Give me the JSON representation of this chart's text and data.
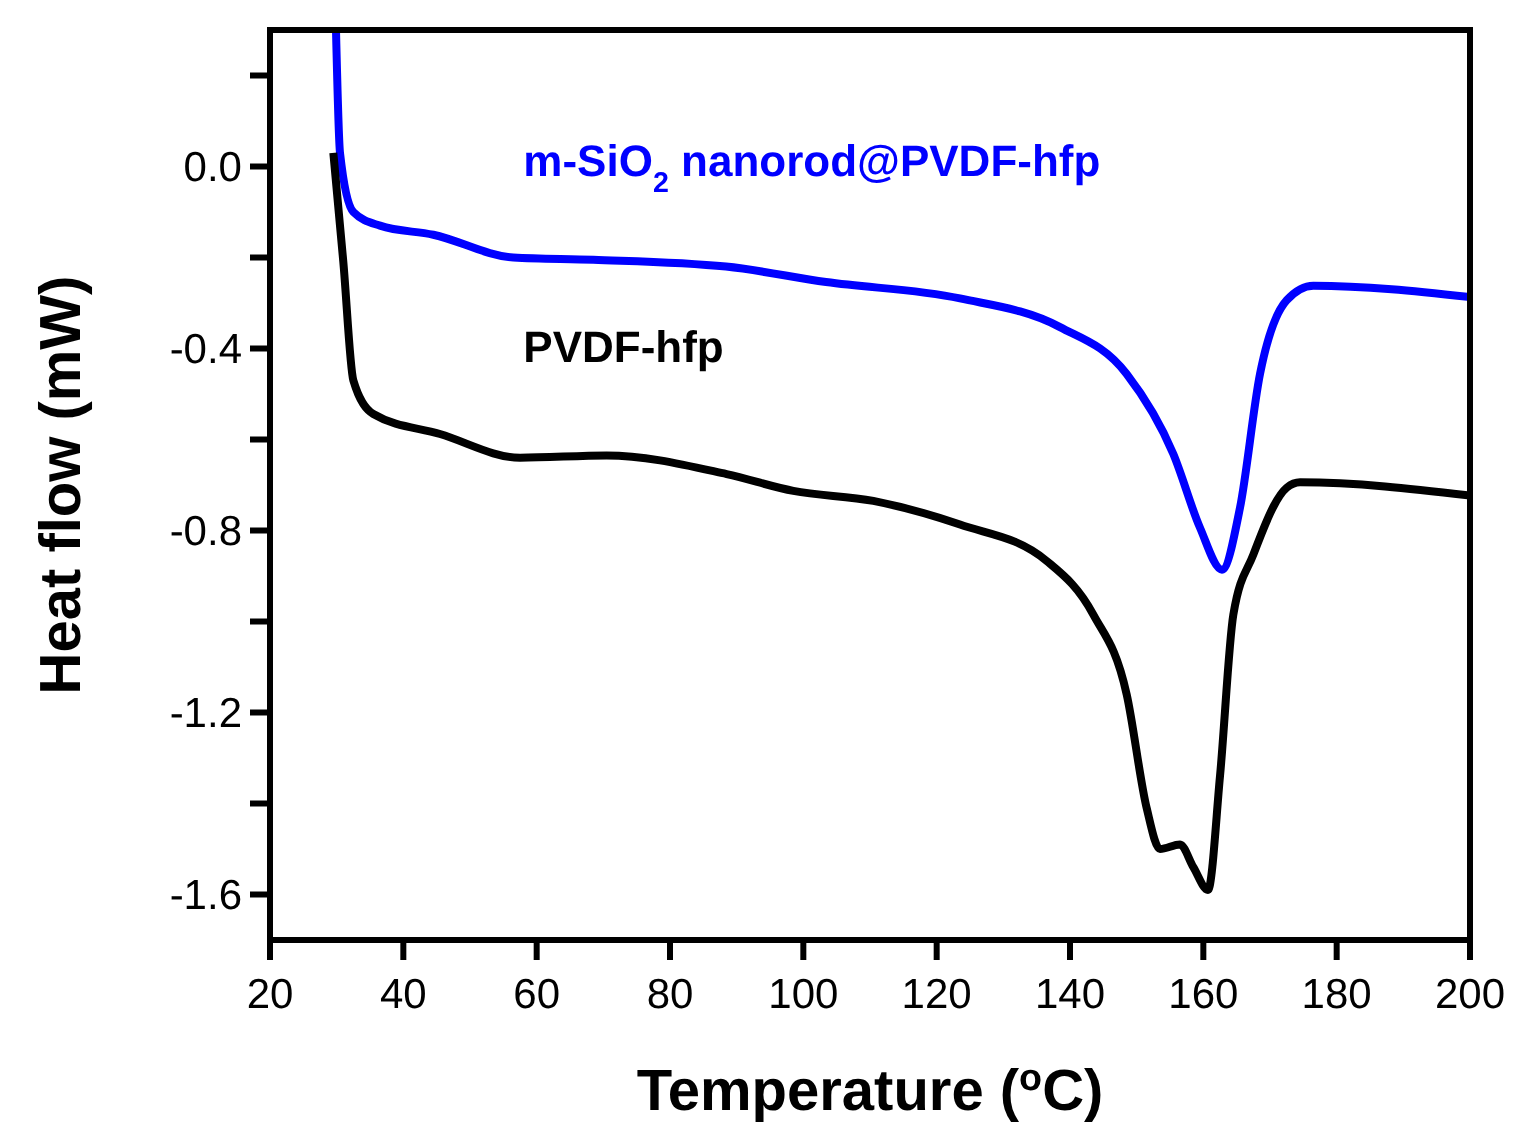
{
  "chart_data": {
    "type": "line",
    "xlabel": "Temperature ($^{o}$C)",
    "ylabel": "Heat flow (mW)",
    "xlim": [
      20,
      200
    ],
    "xticks": [
      20,
      40,
      60,
      80,
      100,
      120,
      140,
      160,
      180,
      200
    ],
    "ylim": [
      -1.7,
      0.3
    ],
    "yticks": [
      {
        "value": 0.2,
        "label": null
      },
      {
        "value": 0,
        "label": "0.0"
      },
      {
        "value": -0.2,
        "label": null
      },
      -0.4,
      {
        "value": -0.6,
        "label": null
      },
      -0.8,
      {
        "value": -1.0,
        "label": null
      },
      -1.2,
      {
        "value": -1.4,
        "label": null
      },
      -1.6
    ],
    "legend": false,
    "grid": false,
    "marker": "none",
    "line_style": "solid",
    "series": [
      {
        "name": "m-SiO$_{2}$ nanorod@PVDF-hfp",
        "color": "#0000ff",
        "x": [
          29.9,
          30.5,
          32.5,
          36.5,
          44.5,
          56.5,
          68.5,
          88.4,
          103.4,
          123.5,
          138.5,
          148.5,
          155.5,
          159.5,
          162.8,
          165.5,
          168.5,
          172.5,
          176.5,
          200
        ],
        "values": [
          0.3,
          0.03,
          -0.1,
          -0.13,
          -0.15,
          -0.2,
          -0.205,
          -0.22,
          -0.254,
          -0.29,
          -0.353,
          -0.456,
          -0.632,
          -0.794,
          -0.886,
          -0.75,
          -0.456,
          -0.294,
          -0.262,
          -0.287
        ]
      },
      {
        "name": "PVDF-hfp",
        "color": "#000000",
        "x": [
          29.5,
          31,
          32.5,
          35.5,
          45.5,
          57.5,
          70.5,
          88.5,
          98.5,
          110.5,
          123.5,
          136.5,
          143.5,
          148.5,
          151.5,
          153.5,
          156.5,
          158.5,
          160.7,
          162.5,
          164.5,
          167.5,
          172.5,
          174.5,
          200
        ],
        "values": [
          0.03,
          -0.21,
          -0.47,
          -0.544,
          -0.588,
          -0.64,
          -0.635,
          -0.676,
          -0.713,
          -0.735,
          -0.787,
          -0.867,
          -0.985,
          -1.16,
          -1.41,
          -1.5,
          -1.49,
          -1.54,
          -1.59,
          -1.34,
          -0.985,
          -0.853,
          -0.706,
          -0.694,
          -0.723
        ]
      }
    ]
  }
}
